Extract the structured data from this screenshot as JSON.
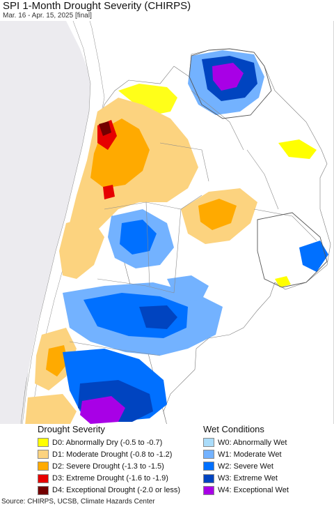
{
  "header": {
    "title": "SPI 1-Month Drought Severity (CHIRPS)",
    "subtitle": "Mar. 16 - Apr. 15, 2025 [final]"
  },
  "legend": {
    "drought": {
      "title": "Drought Severity",
      "items": [
        {
          "label": "D0: Abnormally Dry (-0.5 to -0.7)",
          "color": "#ffff00"
        },
        {
          "label": "D1: Moderate Drought (-0.8 to -1.2)",
          "color": "#fcd37f"
        },
        {
          "label": "D2: Severe Drought (-1.3 to -1.5)",
          "color": "#ffaa00"
        },
        {
          "label": "D3: Extreme Drought (-1.6 to -1.9)",
          "color": "#e60000"
        },
        {
          "label": "D4: Exceptional Drought (-2.0 or less)",
          "color": "#730000"
        }
      ]
    },
    "wet": {
      "title": "Wet Conditions",
      "items": [
        {
          "label": "W0: Abnormally Wet",
          "color": "#aadcfa"
        },
        {
          "label": "W1: Moderate Wet",
          "color": "#73b2ff"
        },
        {
          "label": "W2: Severe Wet",
          "color": "#0070ff"
        },
        {
          "label": "W3: Extreme Wet",
          "color": "#0044c0"
        },
        {
          "label": "W4: Exceptional Wet",
          "color": "#a800e6"
        }
      ]
    }
  },
  "footer": {
    "source": "Source: CHIRPS, UCSB, Climate Hazards Center"
  },
  "map": {
    "background_color": "#ecebef",
    "land_color": "#ffffff",
    "ocean_color": "#ecebef"
  }
}
